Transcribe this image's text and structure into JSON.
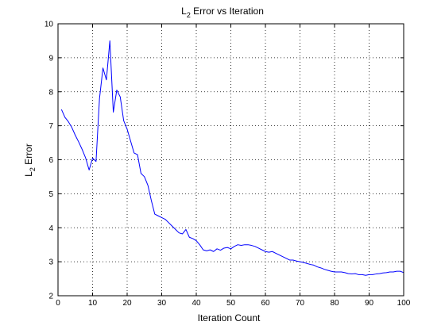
{
  "chart_data": {
    "type": "line",
    "title": "Error vs Iteration",
    "title_prefix": "L",
    "title_subscript": "2",
    "xlabel": "Iteration Count",
    "ylabel": "Error",
    "ylabel_prefix": "L",
    "ylabel_subscript": "2",
    "xlim": [
      0,
      100
    ],
    "ylim": [
      2,
      10
    ],
    "xticks": [
      0,
      10,
      20,
      30,
      40,
      50,
      60,
      70,
      80,
      90,
      100
    ],
    "yticks": [
      2,
      3,
      4,
      5,
      6,
      7,
      8,
      9,
      10
    ],
    "grid": true,
    "line_color": "#0000ff",
    "series": [
      {
        "x": [
          1,
          2,
          3,
          4,
          5,
          6,
          7,
          8,
          9,
          10,
          11,
          12,
          13,
          14,
          15,
          16,
          17,
          18,
          19,
          20,
          21,
          22,
          23,
          24,
          25,
          26,
          27,
          28,
          29,
          30,
          31,
          32,
          33,
          34,
          35,
          36,
          37,
          38,
          39,
          40,
          41,
          42,
          43,
          44,
          45,
          46,
          47,
          48,
          49,
          50,
          51,
          52,
          53,
          54,
          55,
          56,
          57,
          58,
          59,
          60,
          61,
          62,
          63,
          64,
          65,
          66,
          67,
          68,
          69,
          70,
          71,
          72,
          73,
          74,
          75,
          76,
          77,
          78,
          79,
          80,
          81,
          82,
          83,
          84,
          85,
          86,
          87,
          88,
          89,
          90,
          91,
          92,
          93,
          94,
          95,
          96,
          97,
          98,
          99,
          100
        ],
        "y": [
          7.48,
          7.25,
          7.12,
          6.95,
          6.72,
          6.52,
          6.3,
          6.05,
          5.7,
          6.05,
          5.95,
          7.8,
          8.7,
          8.35,
          9.5,
          7.4,
          8.05,
          7.85,
          7.15,
          6.9,
          6.55,
          6.2,
          6.15,
          5.6,
          5.5,
          5.25,
          4.8,
          4.4,
          4.35,
          4.3,
          4.25,
          4.15,
          4.05,
          3.95,
          3.85,
          3.82,
          3.95,
          3.72,
          3.68,
          3.62,
          3.5,
          3.35,
          3.32,
          3.35,
          3.3,
          3.38,
          3.34,
          3.4,
          3.42,
          3.38,
          3.45,
          3.5,
          3.48,
          3.5,
          3.5,
          3.48,
          3.45,
          3.4,
          3.35,
          3.3,
          3.28,
          3.3,
          3.25,
          3.2,
          3.15,
          3.1,
          3.05,
          3.05,
          3.02,
          3.0,
          2.98,
          2.95,
          2.92,
          2.9,
          2.85,
          2.82,
          2.78,
          2.75,
          2.72,
          2.7,
          2.7,
          2.7,
          2.68,
          2.65,
          2.64,
          2.65,
          2.62,
          2.62,
          2.6,
          2.62,
          2.62,
          2.64,
          2.65,
          2.67,
          2.68,
          2.7,
          2.7,
          2.72,
          2.72,
          2.68
        ]
      }
    ]
  }
}
